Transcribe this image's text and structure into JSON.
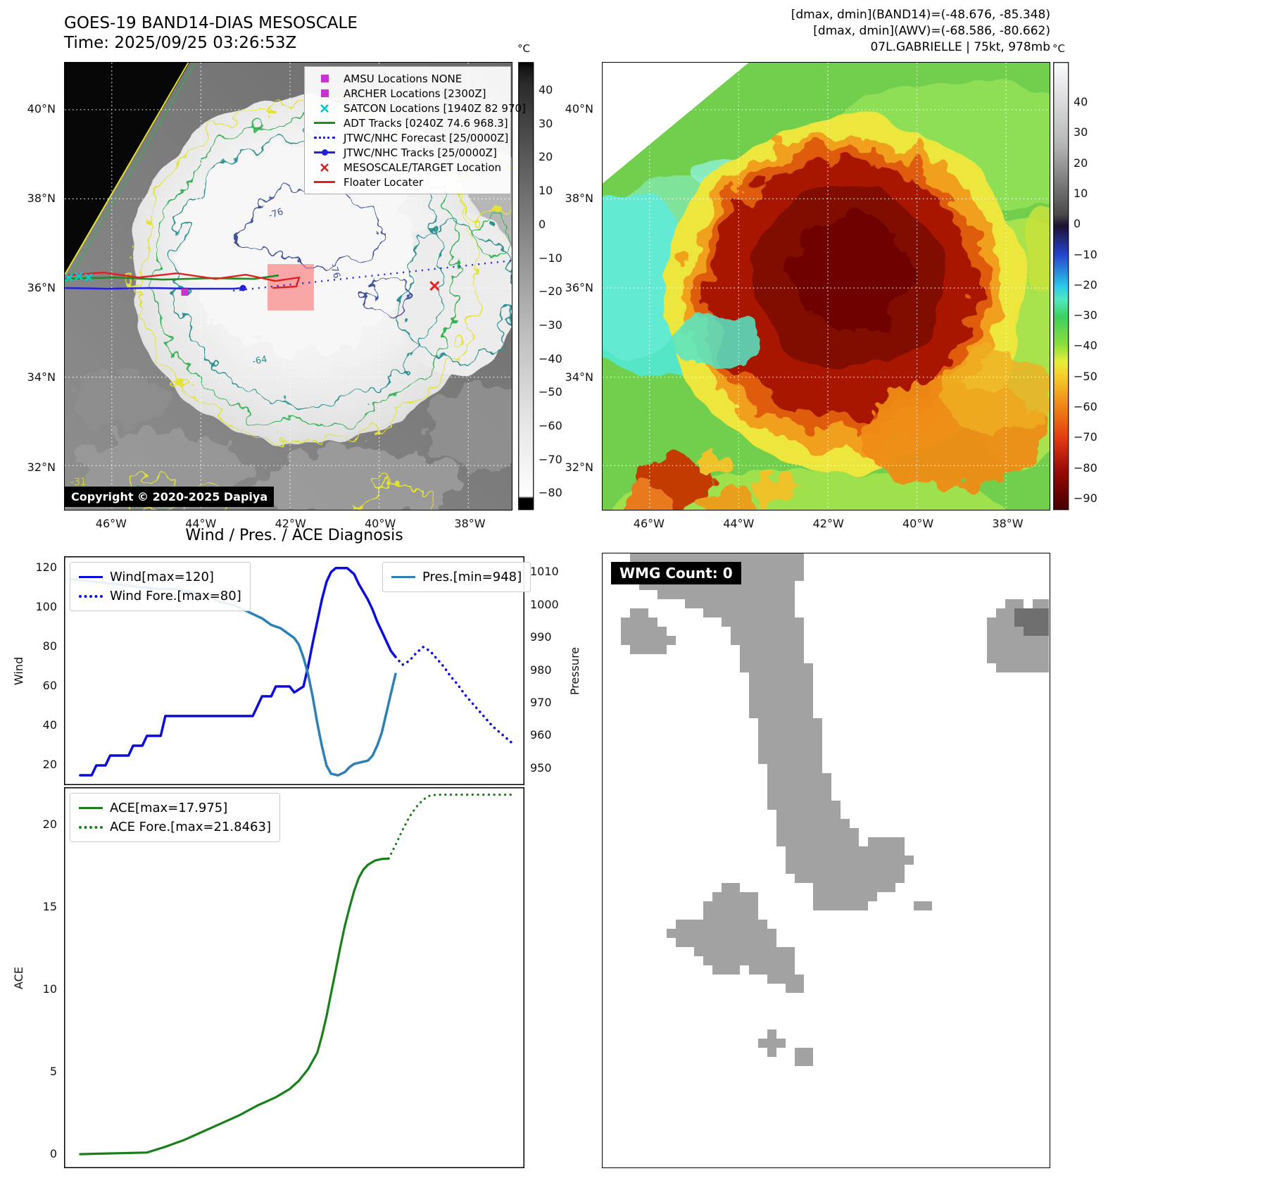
{
  "panel_band14": {
    "title": "GOES-19 BAND14-DIAS MESOSCALE",
    "time": "Time: 2025/09/25 03:26:53Z",
    "copyright": "Copyright © 2020-2025 Dapiya",
    "colorbar": {
      "unit": "°C",
      "ticks": [
        40,
        30,
        20,
        10,
        0,
        -10,
        -20,
        -30,
        -40,
        -50,
        -60,
        -70,
        -80
      ]
    },
    "lat_ticks": [
      "40°N",
      "38°N",
      "36°N",
      "34°N",
      "32°N"
    ],
    "lon_ticks": [
      "46°W",
      "44°W",
      "42°W",
      "40°W",
      "38°W"
    ],
    "legend": [
      {
        "marker": "square",
        "color": "#c832d2",
        "label": "AMSU Locations NONE"
      },
      {
        "marker": "square",
        "color": "#c832d2",
        "label": "ARCHER Locations [2300Z]"
      },
      {
        "marker": "x",
        "color": "#00c8c8",
        "label": "SATCON Locations [1940Z 82 970]"
      },
      {
        "marker": "line",
        "color": "#1f8c1f",
        "label": "ADT Tracks [0240Z 74.6 968.3]"
      },
      {
        "marker": "dotted",
        "color": "#2222dd",
        "label": "JTWC/NHC Forecast [25/0000Z]"
      },
      {
        "marker": "line-dot",
        "color": "#2222dd",
        "label": "JTWC/NHC Tracks [25/0000Z]"
      },
      {
        "marker": "x",
        "color": "#e02020",
        "label": "MESOSCALE/TARGET Location"
      },
      {
        "marker": "line",
        "color": "#e02020",
        "label": "Floater Locater"
      }
    ],
    "contour_labels": [
      {
        "text": "-76",
        "color": "#3d5096"
      },
      {
        "text": "-76",
        "color": "#3d5096"
      },
      {
        "text": "-64",
        "color": "#2d9090"
      },
      {
        "text": "-31",
        "color": "#cfcf2a"
      }
    ]
  },
  "panel_awv": {
    "header_lines": [
      "[dmax, dmin](BAND14)=(-48.676, -85.348)",
      "[dmax, dmin](AWV)=(-68.586, -80.662)",
      "07L.GABRIELLE | 75kt, 978mb"
    ],
    "colorbar": {
      "unit": "°C",
      "ticks": [
        40,
        30,
        20,
        10,
        0,
        -10,
        -20,
        -30,
        -40,
        -50,
        -60,
        -70,
        -80,
        -90
      ]
    },
    "lat_ticks": [
      "40°N",
      "38°N",
      "36°N",
      "34°N",
      "32°N"
    ],
    "lon_ticks": [
      "46°W",
      "44°W",
      "42°W",
      "40°W",
      "38°W"
    ]
  },
  "panel_wmg": {
    "label": "WMG Count: 0"
  },
  "chart_data": [
    {
      "type": "line",
      "title": "Wind / Pres. / ACE Diagnosis",
      "x_axis": {
        "labels_visible": false
      },
      "axes": {
        "left": {
          "label": "Wind",
          "ticks": [
            20,
            40,
            60,
            80,
            100,
            120
          ],
          "range": [
            10,
            126
          ]
        },
        "right": {
          "label": "Pressure",
          "ticks": [
            950,
            960,
            970,
            980,
            990,
            1000,
            1010
          ],
          "range": [
            945,
            1015
          ]
        }
      },
      "series": [
        {
          "name": "Wind[max=120]",
          "axis": "left",
          "style": "solid",
          "color": "#0b0bdd",
          "width": 3.5,
          "points": [
            [
              3.5,
              15
            ],
            [
              6,
              15
            ],
            [
              7,
              20
            ],
            [
              9,
              20
            ],
            [
              10,
              25
            ],
            [
              14,
              25
            ],
            [
              15,
              30
            ],
            [
              17,
              30
            ],
            [
              18,
              35
            ],
            [
              21,
              35
            ],
            [
              22,
              45
            ],
            [
              41,
              45
            ],
            [
              43,
              55
            ],
            [
              45,
              55
            ],
            [
              46,
              60
            ],
            [
              49,
              60
            ],
            [
              50,
              57
            ],
            [
              52,
              60
            ],
            [
              53,
              70
            ],
            [
              54,
              82
            ],
            [
              55,
              93
            ],
            [
              56,
              104
            ],
            [
              57,
              113
            ],
            [
              58,
              118
            ],
            [
              59,
              120
            ],
            [
              61.5,
              120
            ],
            [
              63,
              117
            ],
            [
              64,
              112
            ],
            [
              65,
              108
            ],
            [
              66,
              104
            ],
            [
              67,
              99
            ],
            [
              68,
              93
            ],
            [
              69,
              88
            ],
            [
              70,
              83
            ],
            [
              71,
              78
            ],
            [
              72,
              75
            ]
          ]
        },
        {
          "name": "Wind Fore.[max=80]",
          "axis": "left",
          "style": "dotted",
          "color": "#0b0bdd",
          "width": 3.5,
          "points": [
            [
              72,
              75
            ],
            [
              73.5,
              71
            ],
            [
              75,
              73
            ],
            [
              76.5,
              77
            ],
            [
              78,
              80
            ],
            [
              79.5,
              78
            ],
            [
              81,
              74
            ],
            [
              82.5,
              70
            ],
            [
              84,
              65
            ],
            [
              85.5,
              61
            ],
            [
              87,
              56
            ],
            [
              88.5,
              52
            ],
            [
              90,
              48
            ],
            [
              91.5,
              44
            ],
            [
              93,
              40
            ],
            [
              94.5,
              37
            ],
            [
              96,
              34
            ],
            [
              97.5,
              31
            ]
          ]
        },
        {
          "name": "Pres.[min=948]",
          "axis": "right",
          "style": "solid",
          "color": "#2e7fb5",
          "width": 3.5,
          "points": [
            [
              1.5,
              1008
            ],
            [
              8,
              1007
            ],
            [
              14,
              1006
            ],
            [
              20,
              1005
            ],
            [
              24,
              1005
            ],
            [
              28,
              1004
            ],
            [
              31,
              1003
            ],
            [
              34,
              1001
            ],
            [
              37,
              1000
            ],
            [
              40,
              998
            ],
            [
              43,
              996
            ],
            [
              45,
              994
            ],
            [
              47,
              993
            ],
            [
              49,
              991
            ],
            [
              50,
              990
            ],
            [
              51,
              988
            ],
            [
              52,
              984
            ],
            [
              53,
              979
            ],
            [
              54,
              972
            ],
            [
              55,
              964
            ],
            [
              56,
              957
            ],
            [
              57,
              951
            ],
            [
              58,
              948.5
            ],
            [
              59.5,
              948
            ],
            [
              61,
              949
            ],
            [
              62,
              950.5
            ],
            [
              63,
              951.5
            ],
            [
              64.5,
              952
            ],
            [
              66,
              952.5
            ],
            [
              67,
              954
            ],
            [
              68,
              957
            ],
            [
              69,
              961
            ],
            [
              70,
              967
            ],
            [
              71,
              973
            ],
            [
              72,
              979
            ]
          ]
        }
      ],
      "legend_boxes": [
        [
          "Wind[max=120]",
          "Wind Fore.[max=80]"
        ],
        [
          "Pres.[min=948]"
        ]
      ]
    },
    {
      "type": "line",
      "x_axis": {
        "labels_visible": false
      },
      "axes": {
        "left": {
          "label": "ACE",
          "ticks": [
            0,
            5,
            10,
            15,
            20
          ],
          "range": [
            -0.8,
            22.3
          ]
        }
      },
      "series": [
        {
          "name": "ACE[max=17.975]",
          "axis": "left",
          "style": "solid",
          "color": "#1a7f1a",
          "width": 3.2,
          "points": [
            [
              3.5,
              0.05
            ],
            [
              18,
              0.15
            ],
            [
              22,
              0.5
            ],
            [
              26,
              0.9
            ],
            [
              30,
              1.4
            ],
            [
              34,
              1.9
            ],
            [
              38,
              2.4
            ],
            [
              42,
              3
            ],
            [
              46,
              3.5
            ],
            [
              49,
              4
            ],
            [
              51,
              4.5
            ],
            [
              53,
              5.2
            ],
            [
              55,
              6.2
            ],
            [
              56,
              7.2
            ],
            [
              57,
              8.4
            ],
            [
              58,
              9.8
            ],
            [
              59,
              11.2
            ],
            [
              60,
              12.6
            ],
            [
              61,
              13.9
            ],
            [
              62,
              15
            ],
            [
              63,
              16
            ],
            [
              64,
              16.8
            ],
            [
              65,
              17.3
            ],
            [
              66,
              17.6
            ],
            [
              67.5,
              17.85
            ],
            [
              69,
              17.95
            ],
            [
              70.5,
              17.975
            ]
          ]
        },
        {
          "name": "ACE Fore.[max=21.8463]",
          "axis": "left",
          "style": "dotted",
          "color": "#1a7f1a",
          "width": 3.2,
          "points": [
            [
              70.5,
              17.975
            ],
            [
              72,
              18.8
            ],
            [
              73.5,
              19.7
            ],
            [
              75,
              20.5
            ],
            [
              76.5,
              21.1
            ],
            [
              78,
              21.55
            ],
            [
              79.5,
              21.8
            ],
            [
              81,
              21.8463
            ],
            [
              85,
              21.8463
            ],
            [
              89,
              21.8463
            ],
            [
              93,
              21.8463
            ],
            [
              97,
              21.8463
            ]
          ]
        }
      ],
      "legend_boxes": [
        [
          "ACE[max=17.975]",
          "ACE Fore.[max=21.8463]"
        ]
      ]
    }
  ]
}
